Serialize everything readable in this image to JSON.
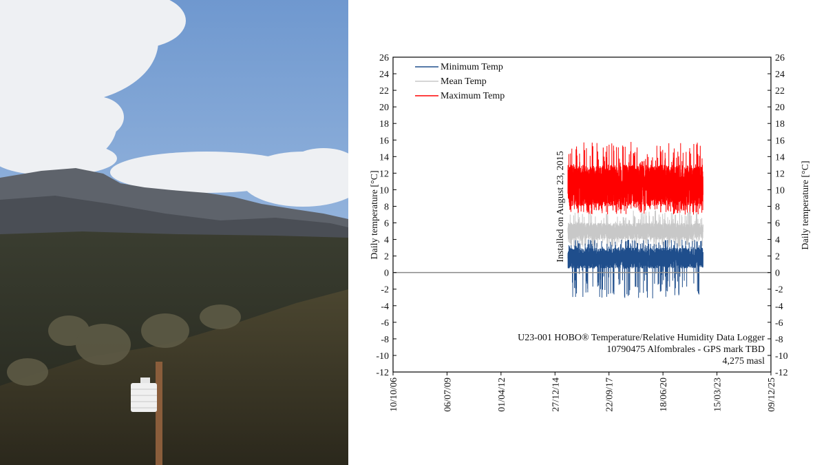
{
  "photo": {
    "subject": "Mountain landscape with temperature data logger radiation shield on wooden post",
    "colors": {
      "sky": "#8fb2dd",
      "cloud": "#f2f3f5",
      "mountain": "#5b6069",
      "hillside": "#2f3226",
      "shrub": "#4a4732",
      "shield": "#f0f0f0",
      "post": "#8a5d3b"
    }
  },
  "chart_data": {
    "type": "line",
    "ylabel_left": "Daily temperature [°C]",
    "ylabel_right": "Daily temperature [°C]",
    "ylim": [
      -12,
      26
    ],
    "yticks": [
      -12,
      -10,
      -8,
      -6,
      -4,
      -2,
      0,
      2,
      4,
      6,
      8,
      10,
      12,
      14,
      16,
      18,
      20,
      22,
      24,
      26
    ],
    "xticks": [
      "10/10/06",
      "06/07/09",
      "01/04/12",
      "27/12/14",
      "22/09/17",
      "18/06/20",
      "15/03/23",
      "09/12/25"
    ],
    "x_range": [
      "2006-10-10",
      "2025-12-09"
    ],
    "zero_line": true,
    "legend": {
      "position": "top-left",
      "entries": [
        {
          "name": "Minimum Temp",
          "color": "#1f4e8c"
        },
        {
          "name": "Mean Temp",
          "color": "#c8c8c8"
        },
        {
          "name": "Maximum Temp",
          "color": "#ff0000"
        }
      ]
    },
    "annotation_install": "Installed on August 23, 2015",
    "note_lines": [
      "U23-001 HOBO® Temperature/Relative Humidity Data Logger",
      "10790475 Alfombrales - GPS mark TBD",
      "4,275 masl"
    ],
    "series": [
      {
        "name": "Maximum Temp",
        "color": "#ff0000",
        "start": "2015-08-23",
        "end": "2022-07-01",
        "range": [
          7,
          15.8
        ],
        "typical": [
          8,
          13
        ]
      },
      {
        "name": "Mean Temp",
        "color": "#c8c8c8",
        "start": "2015-08-23",
        "end": "2022-07-01",
        "range": [
          3,
          7.5
        ],
        "typical": [
          4,
          6
        ]
      },
      {
        "name": "Minimum Temp",
        "color": "#1f4e8c",
        "start": "2015-08-23",
        "end": "2022-07-01",
        "range": [
          -3.2,
          4
        ],
        "typical": [
          0.5,
          3
        ]
      }
    ]
  }
}
